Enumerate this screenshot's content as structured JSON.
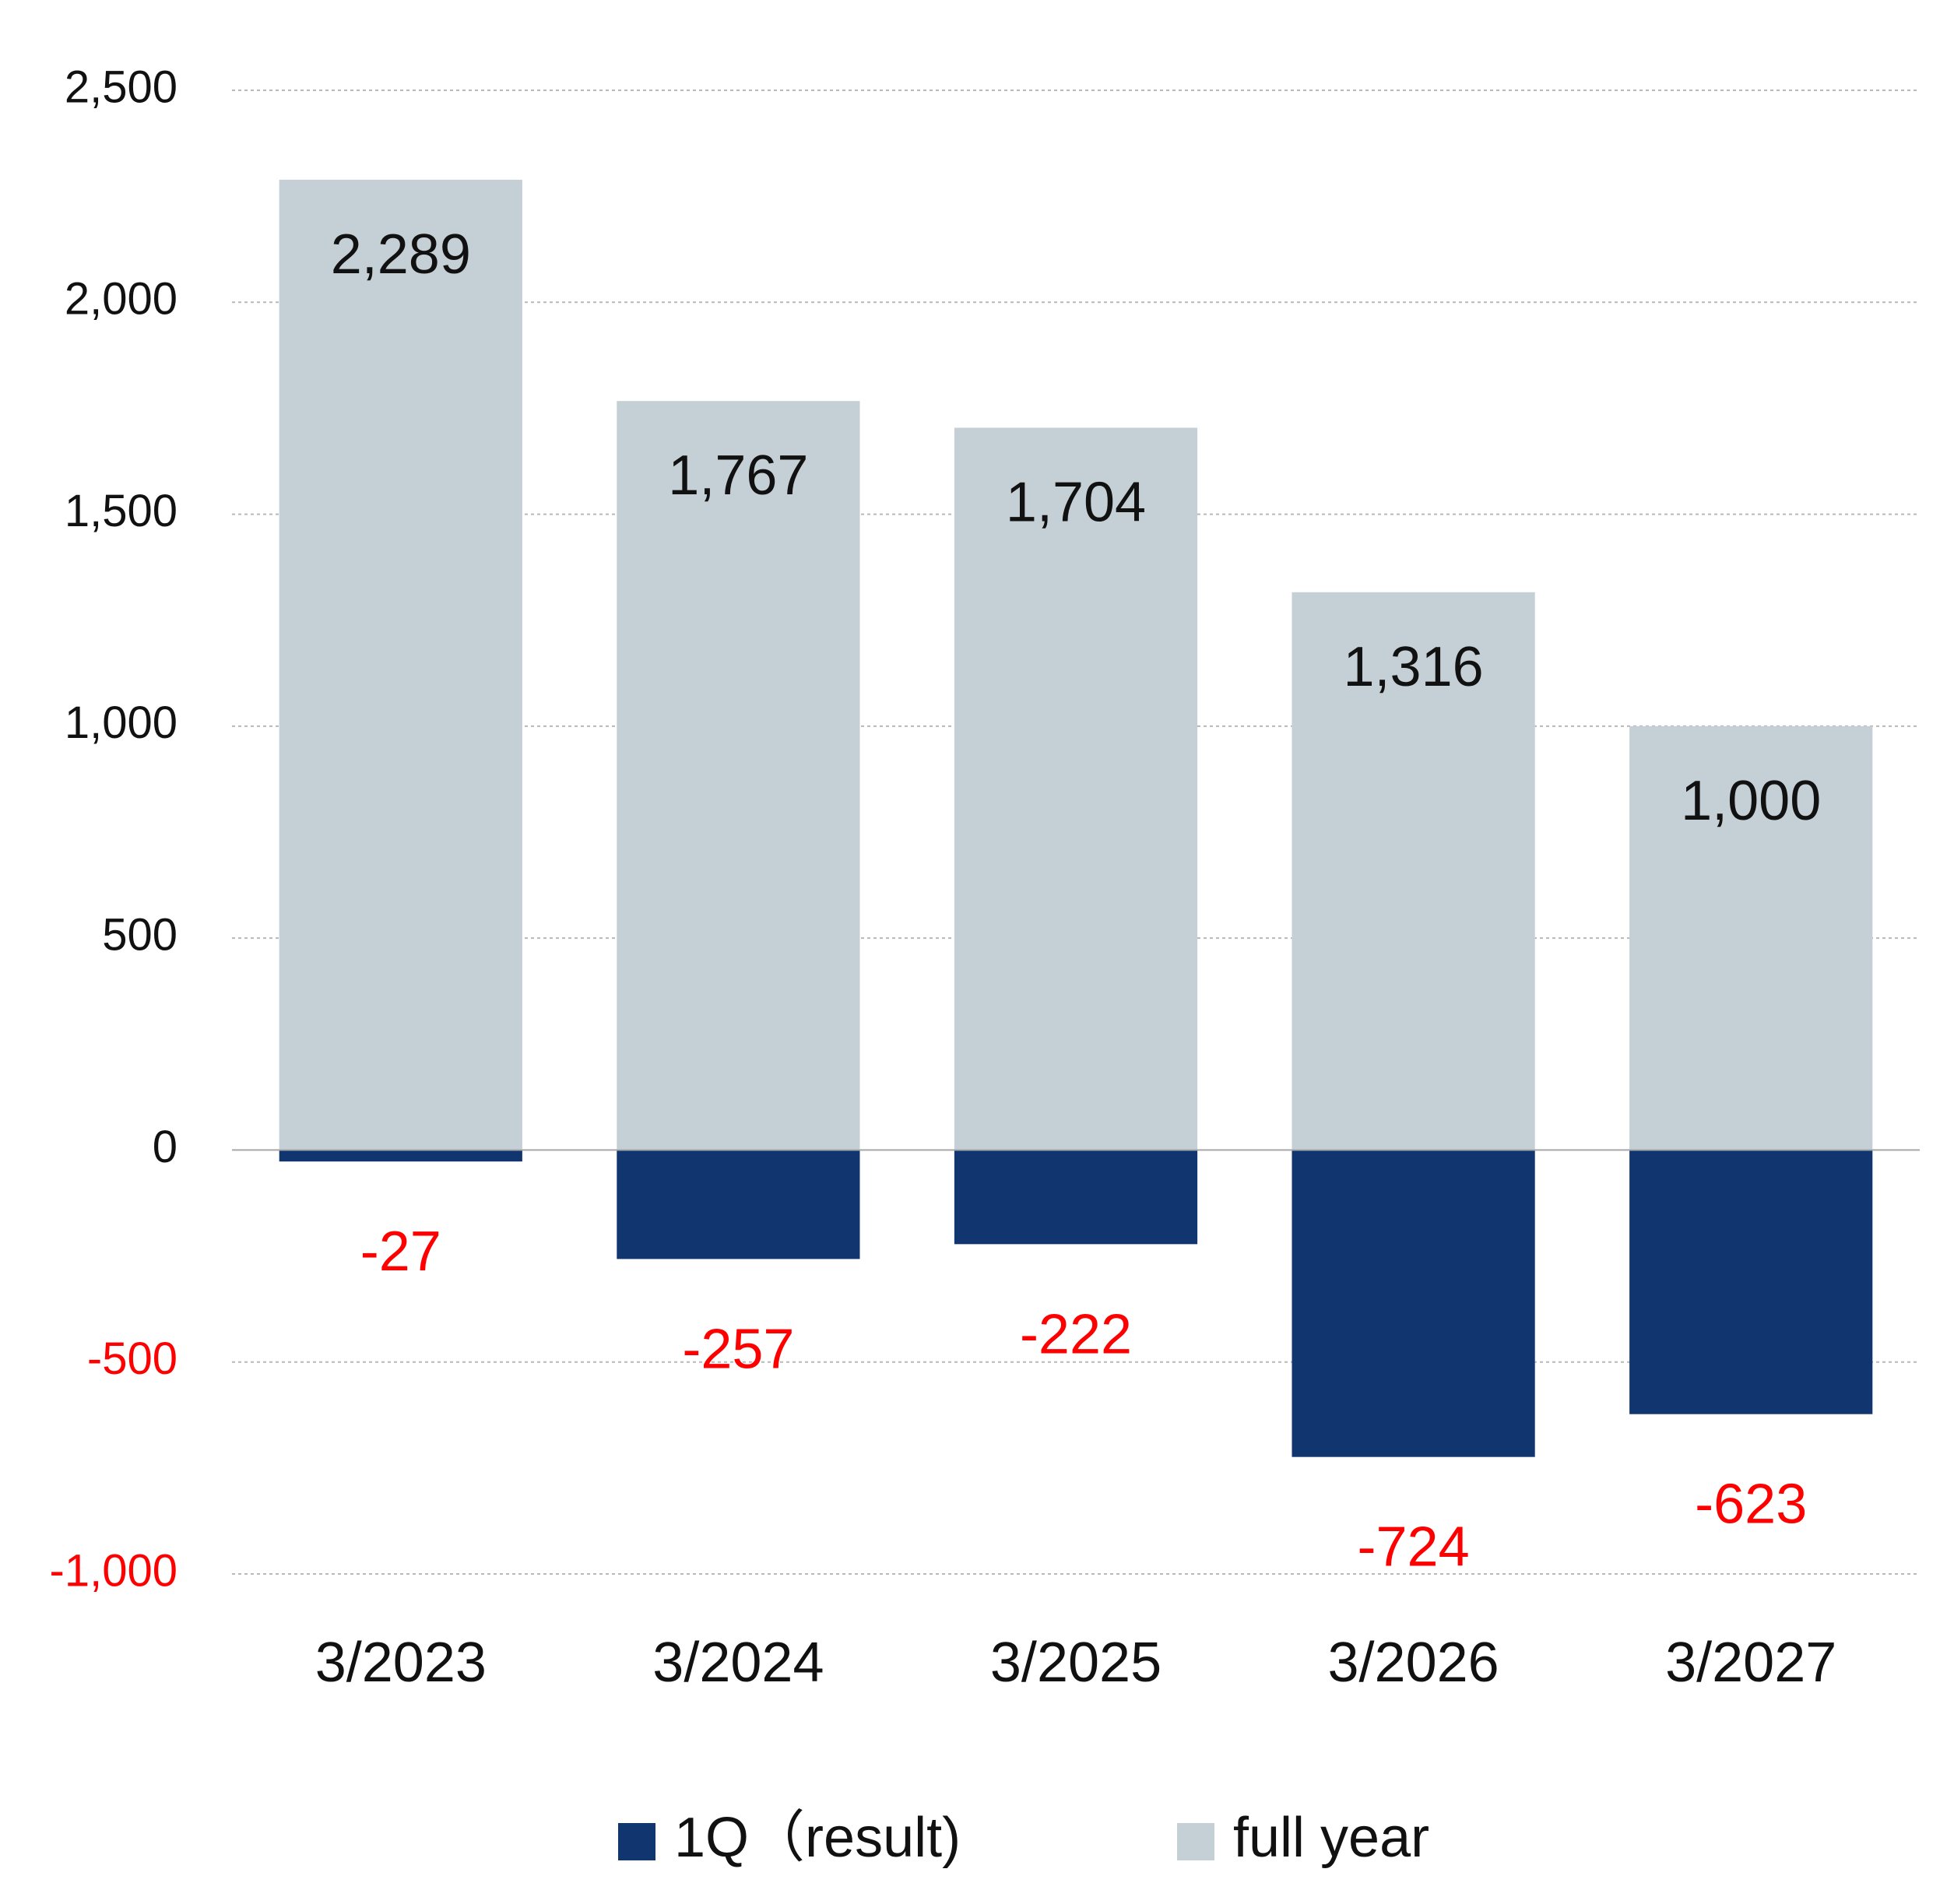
{
  "chart_data": {
    "type": "bar",
    "categories": [
      "3/2023",
      "3/2024",
      "3/2025",
      "3/2026",
      "3/2027"
    ],
    "series": [
      {
        "name": "1Q（result)",
        "color": "#10356f",
        "label_color": "#ff0000",
        "values": [
          -27,
          -257,
          -222,
          -724,
          -623
        ],
        "labels": [
          "-27",
          "-257",
          "-222",
          "-724",
          "-623"
        ]
      },
      {
        "name": "full year",
        "color": "#c5d0d6",
        "label_color": "#111111",
        "values": [
          2289,
          1767,
          1704,
          1316,
          1000
        ],
        "labels": [
          "2,289",
          "1,767",
          "1,704",
          "1,316",
          "1,000"
        ]
      }
    ],
    "ylim": [
      -1000,
      2500
    ],
    "yticks": [
      {
        "value": 2500,
        "label": "2,500",
        "color": "#111111"
      },
      {
        "value": 2000,
        "label": "2,000",
        "color": "#111111"
      },
      {
        "value": 1500,
        "label": "1,500",
        "color": "#111111"
      },
      {
        "value": 1000,
        "label": "1,000",
        "color": "#111111"
      },
      {
        "value": 500,
        "label": "500",
        "color": "#111111"
      },
      {
        "value": 0,
        "label": "0",
        "color": "#111111"
      },
      {
        "value": -500,
        "label": "-500",
        "color": "#ff0000"
      },
      {
        "value": -1000,
        "label": "-1,000",
        "color": "#ff0000"
      }
    ],
    "grid": true,
    "legend_position": "bottom"
  }
}
